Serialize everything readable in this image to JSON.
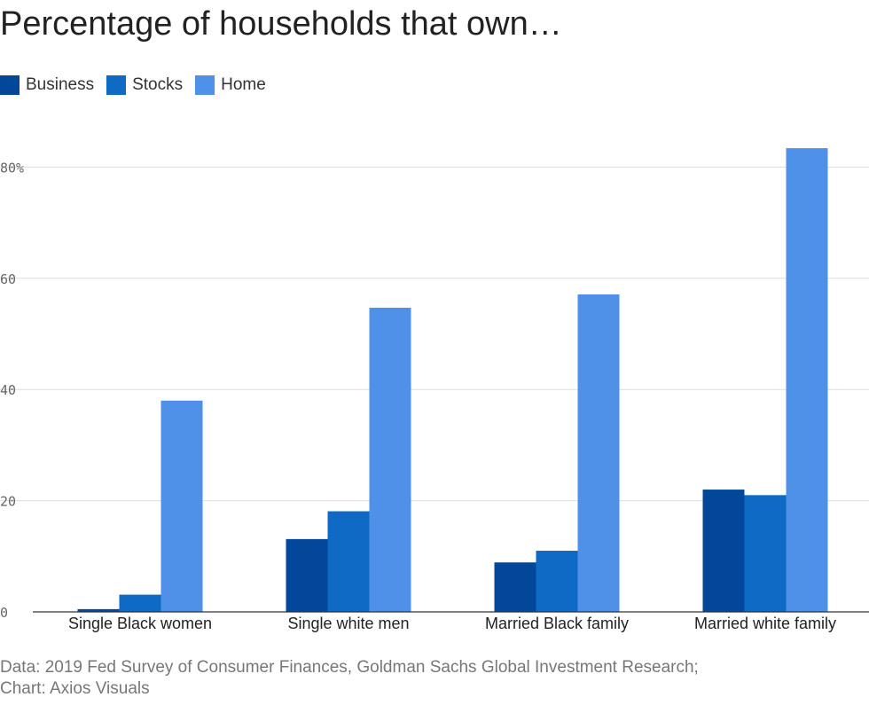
{
  "title": "Percentage of households that own…",
  "source": {
    "line1": "Data: 2019 Fed Survey of Consumer Finances, Goldman Sachs Global Investment Research;",
    "line2": "Chart: Axios Visuals"
  },
  "chart_data": {
    "type": "bar",
    "title": "Percentage of households that own…",
    "categories": [
      "Single Black women",
      "Single white men",
      "Married Black family",
      "Married white family"
    ],
    "series": [
      {
        "name": "Business",
        "color": "#03479a",
        "values": [
          0.5,
          13.1,
          8.9,
          22.0
        ]
      },
      {
        "name": "Stocks",
        "color": "#0e6ac4",
        "values": [
          3.1,
          18.1,
          11.0,
          21.0
        ]
      },
      {
        "name": "Home",
        "color": "#4f91e8",
        "values": [
          38.0,
          54.7,
          57.1,
          83.4
        ]
      }
    ],
    "ylim": [
      0,
      86
    ],
    "yticks": [
      {
        "value": 0,
        "label": "0"
      },
      {
        "value": 20,
        "label": "20"
      },
      {
        "value": 40,
        "label": "40"
      },
      {
        "value": 60,
        "label": "60"
      },
      {
        "value": 80,
        "label": "80%"
      }
    ],
    "grid": true,
    "legend": "top-left",
    "xlabel": "",
    "ylabel": ""
  }
}
